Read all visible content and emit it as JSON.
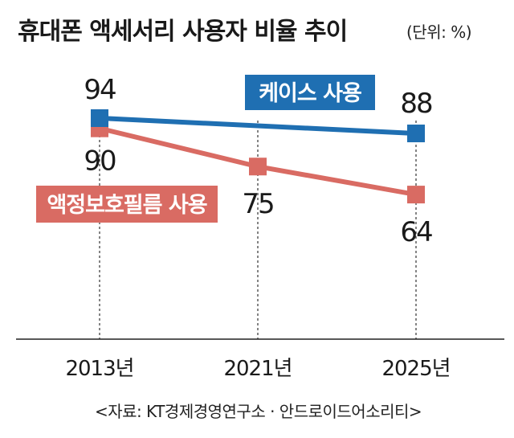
{
  "title": "휴대폰 액세서리 사용자 비율 추이",
  "unit_note": "(단위: %)",
  "source": "<자료: KT경제경영연구소 · 안드로이드어소리티>",
  "chart_data": {
    "type": "line",
    "x": [
      "2013년",
      "2021년",
      "2025년"
    ],
    "series": [
      {
        "name": "케이스 사용",
        "values": [
          94,
          null,
          88
        ],
        "color": "#1f6fb2",
        "label_color": "#1f6fb2"
      },
      {
        "name": "액정보호필름 사용",
        "values": [
          90,
          75,
          64
        ],
        "color": "#d96b63",
        "label_color": "#d96b63"
      }
    ],
    "value_labels": {
      "케이스 사용": [
        "94",
        "",
        "88"
      ],
      "액정보호필름 사용": [
        "90",
        "75",
        "64"
      ]
    },
    "grid": "vertical-dashed",
    "legend": "inline"
  }
}
